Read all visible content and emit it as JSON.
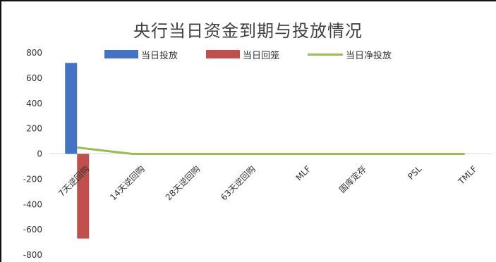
{
  "chart_data": {
    "type": "bar",
    "title": "央行当日资金到期与投放情况",
    "categories": [
      "7天逆回购",
      "14天逆回购",
      "28天逆回购",
      "63天逆回购",
      "MLF",
      "国库定存",
      "PSL",
      "TMLF"
    ],
    "series": [
      {
        "name": "当日投放",
        "type": "bar",
        "color": "#4472C4",
        "values": [
          720,
          0,
          0,
          0,
          0,
          0,
          0,
          0
        ]
      },
      {
        "name": "当日回笼",
        "type": "bar",
        "color": "#C0504D",
        "values": [
          -670,
          0,
          0,
          0,
          0,
          0,
          0,
          0
        ]
      },
      {
        "name": "当日净投放",
        "type": "line",
        "color": "#9BBB59",
        "values": [
          50,
          0,
          0,
          0,
          0,
          0,
          0,
          0
        ]
      }
    ],
    "yticks": [
      "800",
      "600",
      "400",
      "200",
      "0",
      "-200",
      "-400",
      "-600",
      "-800"
    ],
    "ylim": [
      -800,
      800
    ],
    "legend_position": "top",
    "grid": false
  }
}
